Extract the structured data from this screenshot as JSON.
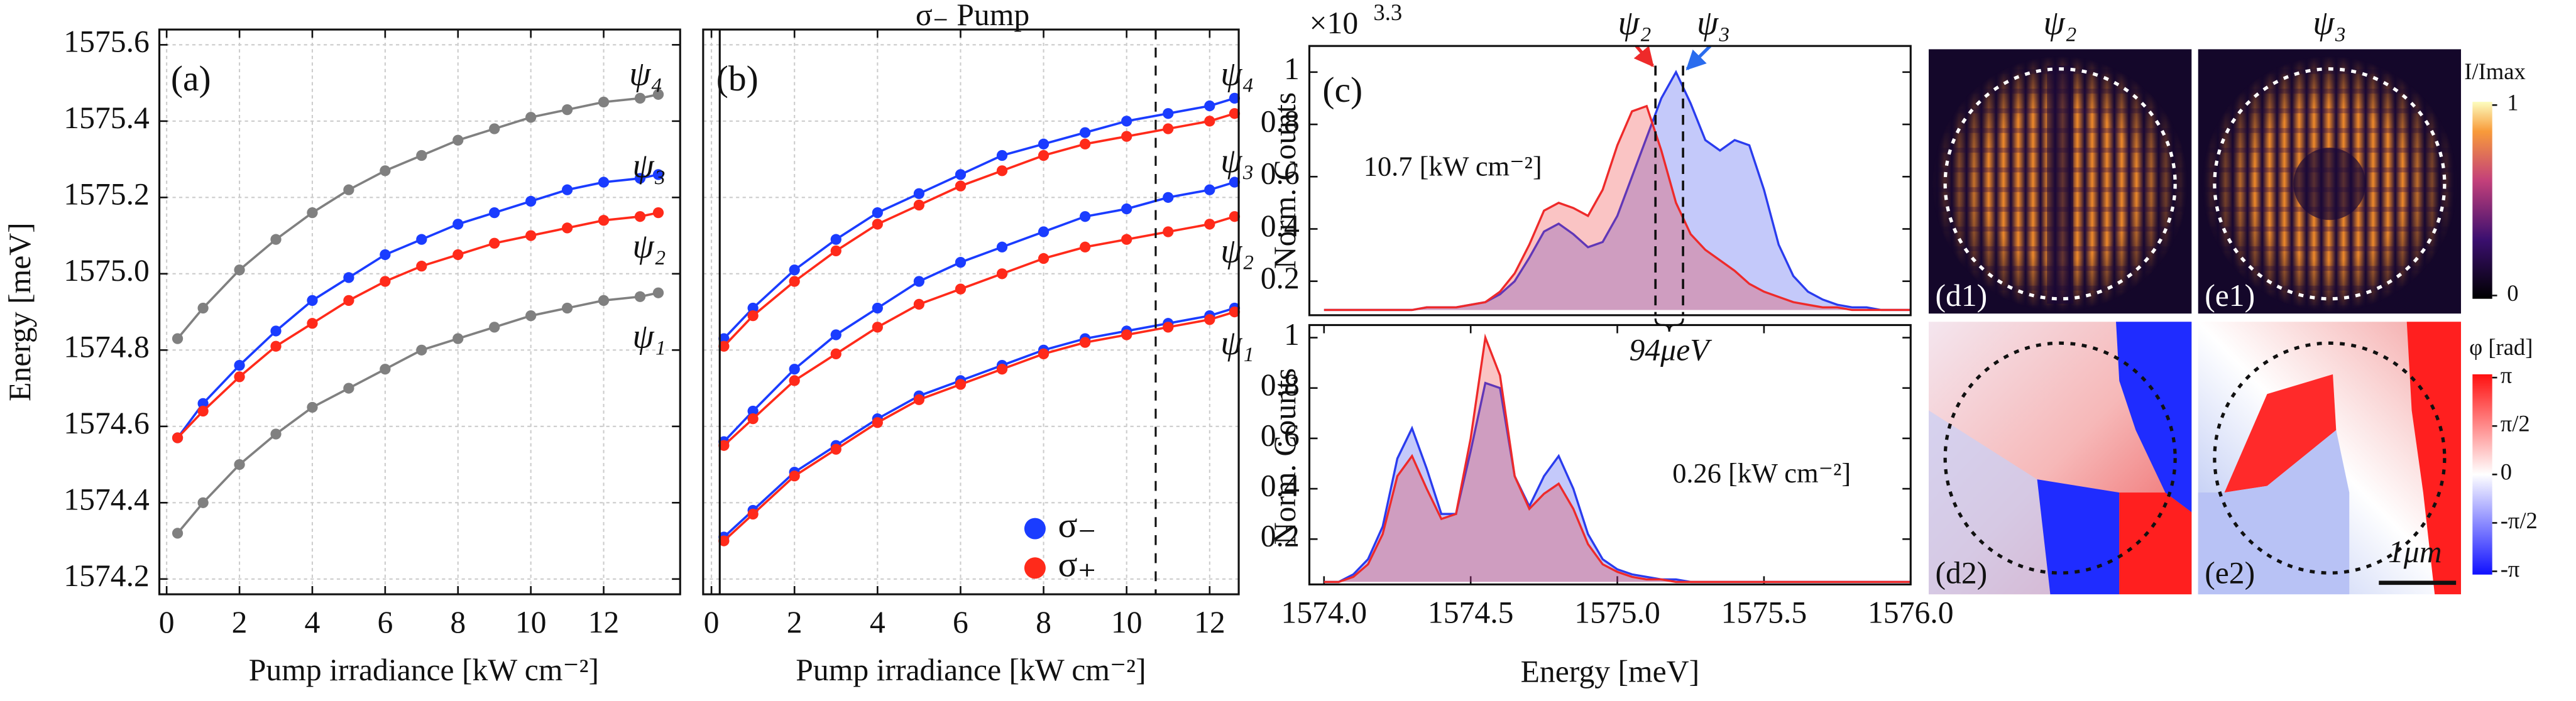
{
  "chart_data": [
    {
      "type": "line",
      "markers": true,
      "panel_label": "(a)",
      "y_label": "Energy [meV]",
      "x_label": "Pump irradiance [kW cm⁻²]",
      "x": [
        0.3,
        1,
        2,
        3,
        4,
        5,
        6,
        7,
        8,
        9,
        10,
        11,
        12,
        13,
        13.5
      ],
      "series": [
        {
          "name": "ψ₄",
          "color": "#808080",
          "values": [
            1574.83,
            1574.91,
            1575.01,
            1575.09,
            1575.16,
            1575.22,
            1575.27,
            1575.31,
            1575.35,
            1575.38,
            1575.41,
            1575.43,
            1575.45,
            1575.46,
            1575.47
          ]
        },
        {
          "name": "ψ₃",
          "color": "#1a3cff",
          "values": [
            1574.57,
            1574.66,
            1574.76,
            1574.85,
            1574.93,
            1574.99,
            1575.05,
            1575.09,
            1575.13,
            1575.16,
            1575.19,
            1575.22,
            1575.24,
            1575.25,
            1575.26
          ]
        },
        {
          "name": "ψ₂",
          "color": "#ff2a1a",
          "values": [
            1574.57,
            1574.64,
            1574.73,
            1574.81,
            1574.87,
            1574.93,
            1574.98,
            1575.02,
            1575.05,
            1575.08,
            1575.1,
            1575.12,
            1575.14,
            1575.15,
            1575.16
          ]
        },
        {
          "name": "ψ₁",
          "color": "#808080",
          "values": [
            1574.32,
            1574.4,
            1574.5,
            1574.58,
            1574.65,
            1574.7,
            1574.75,
            1574.8,
            1574.83,
            1574.86,
            1574.89,
            1574.91,
            1574.93,
            1574.94,
            1574.95
          ]
        }
      ],
      "xlim": [
        -0.2,
        14.1
      ],
      "xticks": [
        0,
        2,
        4,
        6,
        8,
        10,
        12
      ],
      "ylim": [
        1574.16,
        1575.64
      ],
      "yticks": [
        1574.2,
        1574.4,
        1574.6,
        1574.8,
        {
          "value": 1575,
          "label": "1575.0"
        },
        1575.2,
        1575.4,
        1575.6
      ],
      "grid": true
    },
    {
      "type": "line",
      "markers": true,
      "panel_label": "(b)",
      "title": "σ₋ Pump",
      "x_label": "Pump irradiance [kW cm⁻²]",
      "curve_labels": [
        "ψ₄",
        "ψ₃",
        "ψ₂",
        "ψ₁"
      ],
      "x": [
        0.3,
        1,
        2,
        3,
        4,
        5,
        6,
        7,
        8,
        9,
        10,
        11,
        12,
        12.6
      ],
      "series": [
        {
          "name": "σ₋",
          "color": "#1a3cff",
          "branches": [
            [
              1574.83,
              1574.91,
              1575.01,
              1575.09,
              1575.16,
              1575.21,
              1575.26,
              1575.31,
              1575.34,
              1575.37,
              1575.4,
              1575.42,
              1575.44,
              1575.46
            ],
            [
              1574.56,
              1574.64,
              1574.75,
              1574.84,
              1574.91,
              1574.98,
              1575.03,
              1575.07,
              1575.11,
              1575.15,
              1575.17,
              1575.2,
              1575.22,
              1575.24
            ],
            [
              1574.31,
              1574.38,
              1574.48,
              1574.55,
              1574.62,
              1574.68,
              1574.72,
              1574.76,
              1574.8,
              1574.83,
              1574.85,
              1574.87,
              1574.89,
              1574.91
            ]
          ]
        },
        {
          "name": "σ₊",
          "color": "#ff2a1a",
          "branches": [
            [
              1574.81,
              1574.89,
              1574.98,
              1575.06,
              1575.13,
              1575.18,
              1575.23,
              1575.27,
              1575.31,
              1575.34,
              1575.36,
              1575.38,
              1575.4,
              1575.42
            ],
            [
              1574.55,
              1574.62,
              1574.72,
              1574.79,
              1574.86,
              1574.92,
              1574.96,
              1575.0,
              1575.04,
              1575.07,
              1575.09,
              1575.11,
              1575.13,
              1575.15
            ],
            [
              1574.3,
              1574.37,
              1574.47,
              1574.54,
              1574.61,
              1574.67,
              1574.71,
              1574.75,
              1574.79,
              1574.82,
              1574.84,
              1574.86,
              1574.88,
              1574.9
            ]
          ]
        }
      ],
      "vlines": [
        {
          "x": 0.2,
          "style": "solid"
        },
        {
          "x": 10.7,
          "style": "dashed"
        }
      ],
      "xlim": [
        -0.2,
        12.7
      ],
      "xticks": [
        0,
        2,
        4,
        6,
        8,
        10,
        12
      ],
      "ylim": [
        1574.16,
        1575.64
      ],
      "grid": true
    },
    {
      "type": "area",
      "panel_label": "(c)",
      "y_label": "Norm. Counts",
      "multiplier": "×10",
      "multiplier_exp": "3.3",
      "annotation": "10.7 [kW cm⁻²]",
      "marker_labels": [
        "ψ₂",
        "ψ₃"
      ],
      "brace_label": "94μeV",
      "markers_x": [
        1575.13,
        1575.224
      ],
      "x": [
        1574.0,
        1574.05,
        1574.1,
        1574.15,
        1574.2,
        1574.25,
        1574.3,
        1574.35,
        1574.4,
        1574.45,
        1574.5,
        1574.55,
        1574.6,
        1574.65,
        1574.7,
        1574.75,
        1574.8,
        1574.85,
        1574.9,
        1574.95,
        1575.0,
        1575.05,
        1575.1,
        1575.15,
        1575.2,
        1575.25,
        1575.3,
        1575.35,
        1575.4,
        1575.45,
        1575.5,
        1575.55,
        1575.6,
        1575.65,
        1575.7,
        1575.75,
        1575.8,
        1575.85,
        1575.9,
        1575.95,
        1576.0
      ],
      "series": [
        {
          "color": "#2a3cee",
          "values": [
            0.09,
            0.09,
            0.09,
            0.09,
            0.09,
            0.09,
            0.09,
            0.1,
            0.1,
            0.1,
            0.11,
            0.12,
            0.15,
            0.2,
            0.29,
            0.39,
            0.42,
            0.38,
            0.33,
            0.35,
            0.45,
            0.6,
            0.75,
            0.9,
            1.0,
            0.88,
            0.74,
            0.7,
            0.74,
            0.72,
            0.55,
            0.34,
            0.22,
            0.16,
            0.13,
            0.11,
            0.1,
            0.1,
            0.09,
            0.09,
            0.09
          ]
        },
        {
          "color": "#ee2a2a",
          "values": [
            0.09,
            0.09,
            0.09,
            0.09,
            0.09,
            0.09,
            0.09,
            0.1,
            0.1,
            0.1,
            0.11,
            0.12,
            0.16,
            0.23,
            0.34,
            0.47,
            0.5,
            0.48,
            0.45,
            0.55,
            0.72,
            0.85,
            0.87,
            0.7,
            0.5,
            0.38,
            0.32,
            0.28,
            0.24,
            0.19,
            0.16,
            0.14,
            0.12,
            0.11,
            0.1,
            0.1,
            0.09,
            0.09,
            0.09,
            0.09,
            0.09
          ]
        }
      ],
      "xlim": [
        1573.95,
        1576.0
      ],
      "ylim": [
        0.07,
        1.1
      ],
      "yticks": [
        0.2,
        0.4,
        0.6,
        0.8,
        1
      ]
    },
    {
      "type": "area",
      "y_label": "Norm. Counts",
      "x_label": "Energy [meV]",
      "annotation": "0.26 [kW cm⁻²]",
      "x": [
        1574.0,
        1574.05,
        1574.1,
        1574.15,
        1574.2,
        1574.25,
        1574.3,
        1574.35,
        1574.4,
        1574.45,
        1574.5,
        1574.55,
        1574.6,
        1574.65,
        1574.7,
        1574.75,
        1574.8,
        1574.85,
        1574.9,
        1574.95,
        1575.0,
        1575.05,
        1575.1,
        1575.15,
        1575.2,
        1575.25,
        1575.3,
        1575.35,
        1575.4,
        1575.45,
        1575.5,
        1575.55,
        1575.6,
        1575.65,
        1575.7,
        1575.75,
        1575.8,
        1575.85,
        1575.9,
        1575.95,
        1576.0
      ],
      "series": [
        {
          "color": "#2a3cee",
          "values": [
            0.03,
            0.03,
            0.06,
            0.12,
            0.25,
            0.52,
            0.64,
            0.48,
            0.3,
            0.3,
            0.55,
            0.82,
            0.8,
            0.45,
            0.33,
            0.45,
            0.53,
            0.4,
            0.22,
            0.12,
            0.08,
            0.06,
            0.05,
            0.04,
            0.04,
            0.03,
            0.03,
            0.03,
            0.03,
            0.03,
            0.03,
            0.03,
            0.03,
            0.03,
            0.03,
            0.03,
            0.03,
            0.03,
            0.03,
            0.03,
            0.03
          ]
        },
        {
          "color": "#ee2a2a",
          "values": [
            0.03,
            0.03,
            0.05,
            0.1,
            0.22,
            0.45,
            0.53,
            0.4,
            0.28,
            0.3,
            0.6,
            1.0,
            0.85,
            0.45,
            0.32,
            0.38,
            0.42,
            0.32,
            0.18,
            0.1,
            0.07,
            0.05,
            0.04,
            0.04,
            0.03,
            0.03,
            0.03,
            0.03,
            0.03,
            0.03,
            0.03,
            0.03,
            0.03,
            0.03,
            0.03,
            0.03,
            0.03,
            0.03,
            0.03,
            0.03,
            0.03
          ]
        }
      ],
      "xlim": [
        1573.95,
        1576.0
      ],
      "ylim": [
        0.02,
        1.05
      ],
      "yticks": [
        0.2,
        0.4,
        0.6,
        0.8,
        1
      ],
      "xticks": [
        {
          "value": 1574,
          "label": "1574.0"
        },
        {
          "value": 1574.5,
          "label": "1574.5"
        },
        {
          "value": 1575,
          "label": "1575.0"
        },
        {
          "value": 1575.5,
          "label": "1575.5"
        },
        {
          "value": 1576,
          "label": "1576.0"
        }
      ]
    }
  ],
  "images": {
    "titles": [
      "ψ₂",
      "ψ₃"
    ],
    "labels": [
      "(d1)",
      "(e1)",
      "(d2)",
      "(e2)"
    ],
    "intensity_bar": {
      "label": "I/Imax",
      "range": [
        0,
        1
      ],
      "ticks": [
        1,
        0
      ]
    },
    "phase_bar": {
      "label": "φ [rad]",
      "range": [
        -3.1416,
        3.1416
      ],
      "ticks": [
        {
          "value": 3.1416,
          "label": "π"
        },
        {
          "value": 1.5708,
          "label": "π/2"
        },
        0,
        {
          "value": -1.5708,
          "label": "-π/2"
        },
        {
          "value": -3.1416,
          "label": "-π"
        }
      ]
    },
    "scale_bar": "1μm"
  }
}
